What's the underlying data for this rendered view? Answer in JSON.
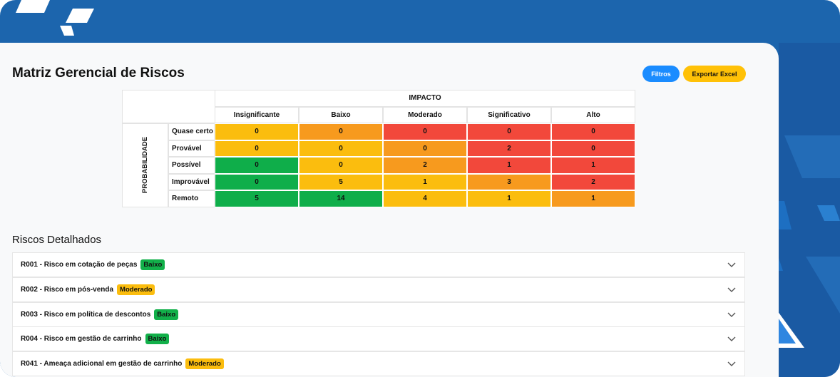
{
  "header": {
    "title": "Matriz Gerencial de Riscos",
    "buttons": [
      "Filtros",
      "Exportar Excel"
    ]
  },
  "matrix": {
    "column_axis": "IMPACTO",
    "row_axis": "PROBABILIDADE",
    "columns": [
      "Insignificante",
      "Baixo",
      "Moderado",
      "Significativo",
      "Alto"
    ],
    "rows": [
      {
        "label": "Quase certo",
        "values": [
          0,
          0,
          0,
          0,
          0
        ],
        "colors": [
          "#fbbd0e",
          "#f79a1e",
          "#f2483b",
          "#f2483b",
          "#f2483b"
        ]
      },
      {
        "label": "Provável",
        "values": [
          0,
          0,
          0,
          2,
          0
        ],
        "colors": [
          "#fbbd0e",
          "#fbbd0e",
          "#f79a1e",
          "#f2483b",
          "#f2483b"
        ]
      },
      {
        "label": "Possível",
        "values": [
          0,
          0,
          2,
          1,
          1
        ],
        "colors": [
          "#0fae4a",
          "#fbbd0e",
          "#f79a1e",
          "#f2483b",
          "#f2483b"
        ]
      },
      {
        "label": "Improvável",
        "values": [
          0,
          5,
          1,
          3,
          2
        ],
        "colors": [
          "#0fae4a",
          "#fbbd0e",
          "#fbbd0e",
          "#f79a1e",
          "#f2483b"
        ]
      },
      {
        "label": "Remoto",
        "values": [
          5,
          14,
          4,
          1,
          1
        ],
        "colors": [
          "#0fae4a",
          "#0fae4a",
          "#fbbd0e",
          "#fbbd0e",
          "#f79a1e"
        ]
      }
    ]
  },
  "risks": {
    "title": "Riscos Detalhados",
    "items": [
      {
        "label": "R001 - Risco em cotação de peças",
        "level": "Baixo",
        "color": "#12b04a"
      },
      {
        "label": "R002 - Risco em pós-venda",
        "level": "Moderado",
        "color": "#fbbd0e"
      },
      {
        "label": "R003 - Risco em política de descontos",
        "level": "Baixo",
        "color": "#12b04a"
      },
      {
        "label": "R004 - Risco em gestão de carrinho",
        "level": "Baixo",
        "color": "#12b04a"
      },
      {
        "label": "R041 - Ameaça adicional em gestão de carrinho",
        "level": "Moderado",
        "color": "#fbbd0e"
      }
    ]
  }
}
